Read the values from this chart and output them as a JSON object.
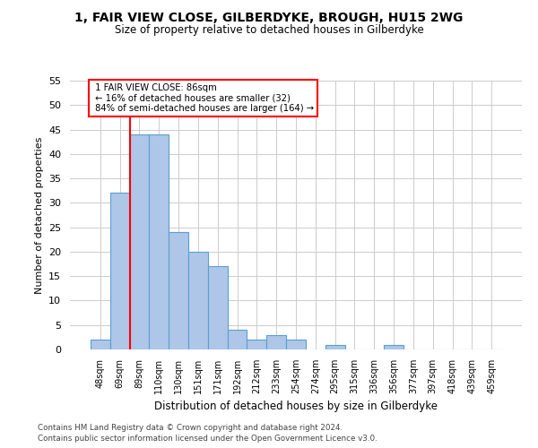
{
  "title_line1": "1, FAIR VIEW CLOSE, GILBERDYKE, BROUGH, HU15 2WG",
  "title_line2": "Size of property relative to detached houses in Gilberdyke",
  "xlabel": "Distribution of detached houses by size in Gilberdyke",
  "ylabel": "Number of detached properties",
  "categories": [
    "48sqm",
    "69sqm",
    "89sqm",
    "110sqm",
    "130sqm",
    "151sqm",
    "171sqm",
    "192sqm",
    "212sqm",
    "233sqm",
    "254sqm",
    "274sqm",
    "295sqm",
    "315sqm",
    "336sqm",
    "356sqm",
    "377sqm",
    "397sqm",
    "418sqm",
    "439sqm",
    "459sqm"
  ],
  "values": [
    2,
    32,
    44,
    44,
    24,
    20,
    17,
    4,
    2,
    3,
    2,
    0,
    1,
    0,
    0,
    1,
    0,
    0,
    0,
    0,
    0
  ],
  "bar_color": "#aec6e8",
  "bar_edge_color": "#5a9fd4",
  "red_line_index": 2,
  "annotation_title": "1 FAIR VIEW CLOSE: 86sqm",
  "annotation_line2": "← 16% of detached houses are smaller (32)",
  "annotation_line3": "84% of semi-detached houses are larger (164) →",
  "ylim": [
    0,
    55
  ],
  "yticks": [
    0,
    5,
    10,
    15,
    20,
    25,
    30,
    35,
    40,
    45,
    50,
    55
  ],
  "footer_line1": "Contains HM Land Registry data © Crown copyright and database right 2024.",
  "footer_line2": "Contains public sector information licensed under the Open Government Licence v3.0.",
  "background_color": "#ffffff",
  "grid_color": "#cccccc"
}
